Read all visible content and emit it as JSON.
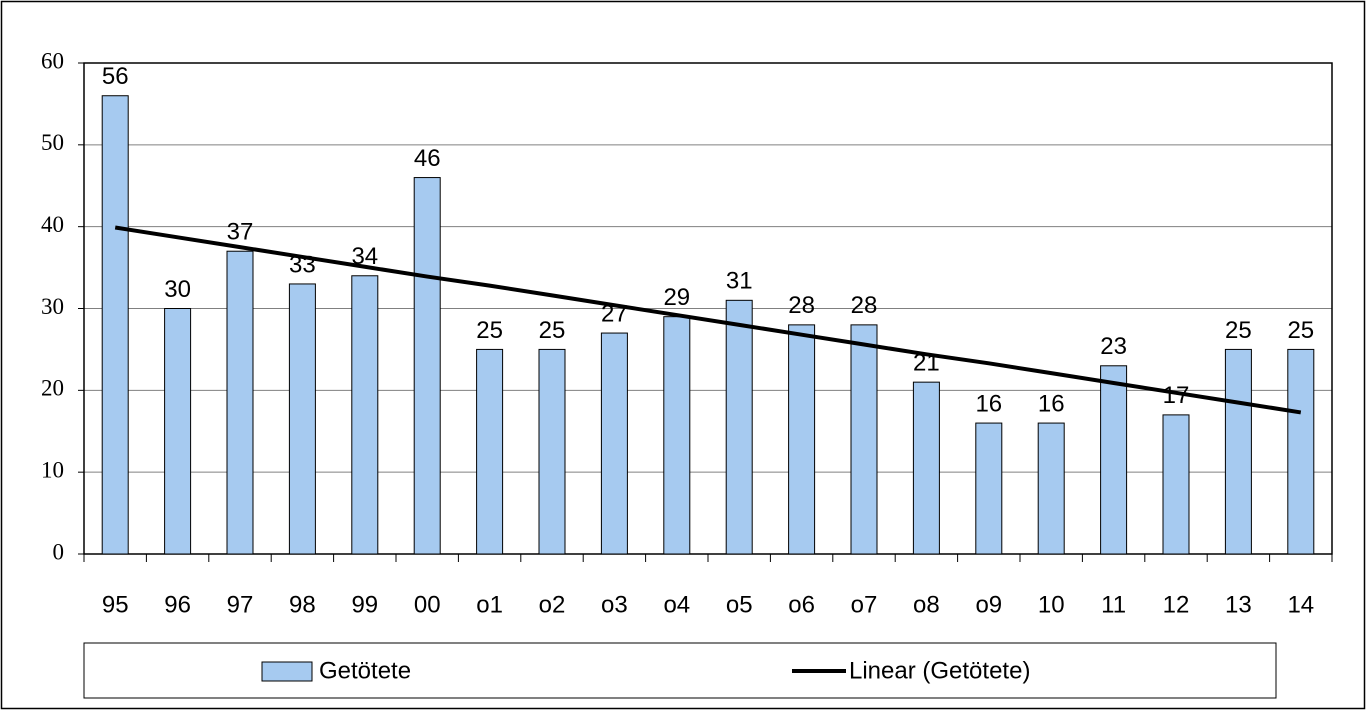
{
  "chart_data": {
    "type": "bar",
    "categories": [
      "95",
      "96",
      "97",
      "98",
      "99",
      "00",
      "o1",
      "o2",
      "o3",
      "o4",
      "o5",
      "o6",
      "o7",
      "o8",
      "o9",
      "10",
      "11",
      "12",
      "13",
      "14"
    ],
    "series": [
      {
        "name": "Getötete",
        "type": "bar",
        "color": "#a6caf0",
        "values": [
          56,
          30,
          37,
          33,
          34,
          46,
          25,
          25,
          27,
          29,
          31,
          28,
          28,
          21,
          16,
          16,
          23,
          17,
          25,
          25
        ]
      },
      {
        "name": "Linear (Getötete)",
        "type": "line",
        "color": "#000000",
        "values": [
          39.9,
          38.7,
          37.5,
          36.3,
          35.1,
          33.9,
          32.8,
          31.6,
          30.4,
          29.2,
          28.0,
          26.8,
          25.6,
          24.4,
          23.3,
          22.1,
          20.9,
          19.7,
          18.5,
          17.3
        ]
      }
    ],
    "ylim": [
      0,
      60
    ],
    "yticks": [
      0,
      10,
      20,
      30,
      40,
      50,
      60
    ],
    "grid": true,
    "legend": "bottom"
  }
}
